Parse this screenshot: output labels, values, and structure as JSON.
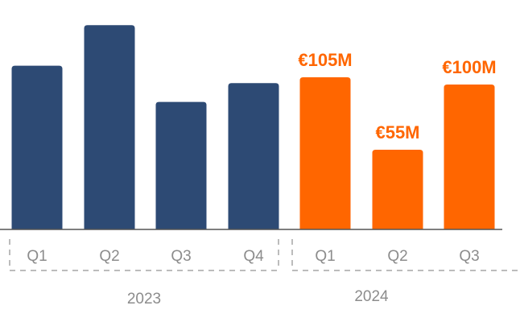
{
  "chart_data": {
    "type": "bar",
    "title": "",
    "xlabel": "",
    "ylabel": "",
    "ylim": [
      0,
      140
    ],
    "grid": false,
    "legend": "none",
    "colors": {
      "2023": "#2d4a74",
      "2024": "#ff6600",
      "axis": "#555555",
      "bracket": "#a6a6a6",
      "text": "#8c8c8c"
    },
    "groups": [
      {
        "year": "2023",
        "bars": [
          {
            "quarter": "Q1",
            "value": 113,
            "label": ""
          },
          {
            "quarter": "Q2",
            "value": 141,
            "label": ""
          },
          {
            "quarter": "Q3",
            "value": 88,
            "label": ""
          },
          {
            "quarter": "Q4",
            "value": 101,
            "label": ""
          }
        ]
      },
      {
        "year": "2024",
        "bars": [
          {
            "quarter": "Q1",
            "value": 105,
            "label": "€105M"
          },
          {
            "quarter": "Q2",
            "value": 55,
            "label": "€55M"
          },
          {
            "quarter": "Q3",
            "value": 100,
            "label": "€100M"
          }
        ]
      }
    ]
  }
}
